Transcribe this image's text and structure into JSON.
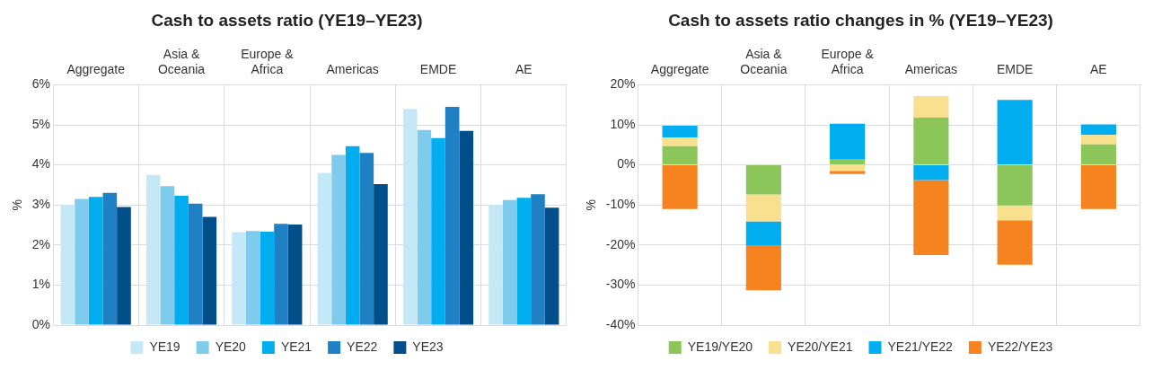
{
  "chart_data": [
    {
      "type": "bar",
      "title": "Cash to assets ratio (YE19–YE23)",
      "ylabel": "%",
      "categories": [
        "Aggregate",
        "Asia & Oceania",
        "Europe & Africa",
        "Americas",
        "EMDE",
        "AE"
      ],
      "series": [
        {
          "name": "YE19",
          "color": "#c5e8f7",
          "values": [
            3.0,
            3.75,
            2.32,
            3.8,
            5.4,
            3.0
          ]
        },
        {
          "name": "YE20",
          "color": "#7ecbee",
          "values": [
            3.15,
            3.47,
            2.35,
            4.25,
            4.87,
            3.12
          ]
        },
        {
          "name": "YE21",
          "color": "#00aeef",
          "values": [
            3.2,
            3.23,
            2.33,
            4.47,
            4.67,
            3.18
          ]
        },
        {
          "name": "YE22",
          "color": "#1f80c3",
          "values": [
            3.3,
            3.03,
            2.53,
            4.3,
            5.45,
            3.27
          ]
        },
        {
          "name": "YE23",
          "color": "#004f8b",
          "values": [
            2.95,
            2.7,
            2.51,
            3.52,
            4.85,
            2.93
          ]
        }
      ],
      "ylim": [
        0,
        6
      ],
      "yticks": [
        {
          "value": 0,
          "label": "0%"
        },
        {
          "value": 1,
          "label": "1%"
        },
        {
          "value": 2,
          "label": "2%"
        },
        {
          "value": 3,
          "label": "3%"
        },
        {
          "value": 4,
          "label": "4%"
        },
        {
          "value": 5,
          "label": "5%"
        },
        {
          "value": 6,
          "label": "6%"
        }
      ],
      "grid": true,
      "legend": "bottom"
    },
    {
      "type": "bar",
      "title": "Cash to assets ratio changes in % (YE19–YE23)",
      "ylabel": "%",
      "categories": [
        "Aggregate",
        "Asia & Oceania",
        "Europe & Africa",
        "Americas",
        "EMDE",
        "AE"
      ],
      "stacked": true,
      "series": [
        {
          "name": "YE19/YE20",
          "color": "#8cc65a",
          "values": [
            4.7,
            -7.4,
            1.5,
            11.8,
            -10.1,
            5.1
          ]
        },
        {
          "name": "YE20/YE21",
          "color": "#f9e08f",
          "values": [
            2.1,
            -6.7,
            -1.5,
            5.4,
            -3.7,
            2.4
          ]
        },
        {
          "name": "YE21/YE22",
          "color": "#00aeef",
          "values": [
            3.0,
            -6.1,
            8.8,
            -3.8,
            16.2,
            2.6
          ]
        },
        {
          "name": "YE22/YE23",
          "color": "#f5831f",
          "values": [
            -11.0,
            -11.1,
            -0.8,
            -18.7,
            -11.1,
            -11.0
          ]
        }
      ],
      "ylim": [
        -40,
        20
      ],
      "yticks": [
        {
          "value": -40,
          "label": "-40%"
        },
        {
          "value": -30,
          "label": "-30%"
        },
        {
          "value": -20,
          "label": "-20%"
        },
        {
          "value": -10,
          "label": "-10%"
        },
        {
          "value": 0,
          "label": "0%"
        },
        {
          "value": 10,
          "label": "10%"
        },
        {
          "value": 20,
          "label": "20%"
        }
      ],
      "grid": true,
      "legend": "bottom"
    }
  ]
}
